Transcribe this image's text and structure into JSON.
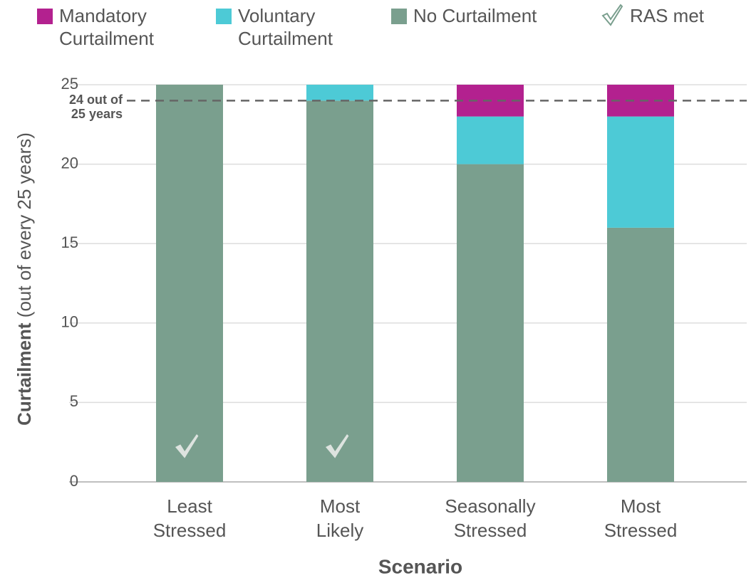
{
  "chart_data": {
    "type": "stacked_bar",
    "categories": [
      "Least Stressed",
      "Most Likely",
      "Seasonally Stressed",
      "Most Stressed"
    ],
    "series": [
      {
        "name": "Mandatory Curtailment",
        "color": "#b3218f",
        "values": [
          0,
          0,
          2,
          2
        ]
      },
      {
        "name": "Voluntary Curtailment",
        "color": "#4dcad6",
        "values": [
          0,
          1,
          3,
          7
        ]
      },
      {
        "name": "No Curtailment",
        "color": "#7a9f8e",
        "values": [
          25,
          24,
          20,
          16
        ]
      }
    ],
    "ras_met": {
      "name": "RAS met",
      "values": [
        true,
        true,
        false,
        false
      ]
    },
    "reference_line": {
      "value": 24,
      "label": [
        "24 out of",
        "25 years"
      ]
    },
    "y_label": "Curtailment",
    "y_label_note": "(out of every 25 years)",
    "x_label": "Scenario",
    "ylim": [
      0,
      25
    ],
    "yticks": [
      0,
      5,
      10,
      15,
      20,
      25
    ],
    "grid": true
  }
}
